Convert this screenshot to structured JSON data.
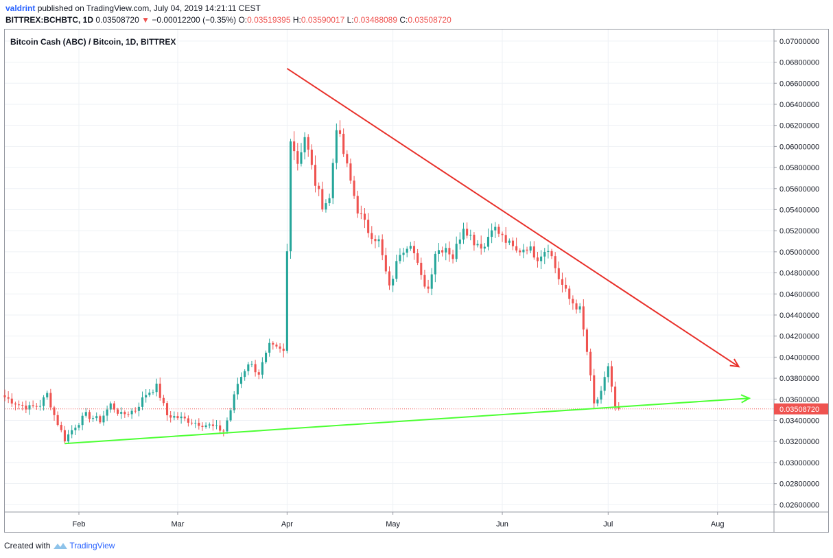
{
  "header": {
    "author": "valdrint",
    "published_text": "published on TradingView.com, July 04, 2019 14:21:11 CEST",
    "symbol": "BITTREX:BCHBTC, 1D",
    "last": "0.03508720",
    "change": "−0.00012200 (−0.35%)",
    "o_label": "O:",
    "o_value": "0.03519395",
    "h_label": "H:",
    "h_value": "0.03590017",
    "l_label": "L:",
    "l_value": "0.03488089",
    "c_label": "C:",
    "c_value": "0.03508720"
  },
  "footer": {
    "created_with": "Created with",
    "brand": "TradingView"
  },
  "colors": {
    "up": "#26a69a",
    "down": "#ef5350",
    "resistance": "#e8302a",
    "support": "#4cff33",
    "grid": "#eef1f5",
    "price_line": "#ef5350"
  },
  "chart_data": {
    "type": "candlestick",
    "title": "Bitcoin Cash (ABC) / Bitcoin, 1D, BITTREX",
    "x_ticks": [
      "Feb",
      "Mar",
      "Apr",
      "May",
      "Jun",
      "Jul",
      "Aug"
    ],
    "x_tick_dates": [
      "2019-02-01",
      "2019-03-01",
      "2019-04-01",
      "2019-05-01",
      "2019-06-01",
      "2019-07-01",
      "2019-08-01"
    ],
    "x_range": [
      "2019-01-11",
      "2019-08-17"
    ],
    "y_range": [
      0.0253,
      0.0711
    ],
    "y_ticks": [
      "0.07000000",
      "0.06800000",
      "0.06600000",
      "0.06400000",
      "0.06200000",
      "0.06000000",
      "0.05800000",
      "0.05600000",
      "0.05400000",
      "0.05200000",
      "0.05000000",
      "0.04800000",
      "0.04600000",
      "0.04400000",
      "0.04200000",
      "0.04000000",
      "0.03800000",
      "0.03600000",
      "0.03400000",
      "0.03200000",
      "0.03000000",
      "0.02800000",
      "0.02600000"
    ],
    "last_price_label": "0.03508720",
    "last_price": 0.0350872,
    "trendlines": [
      {
        "color": "red",
        "from": [
          "2019-04-01",
          0.0674
        ],
        "to": [
          "2019-08-07",
          0.0391
        ],
        "arrow": true
      },
      {
        "color": "green",
        "from": [
          "2019-01-28",
          0.0318
        ],
        "to": [
          "2019-08-10",
          0.0361
        ],
        "arrow": true
      }
    ],
    "ohlc_anchors": [
      [
        "2019-01-11",
        0.0362
      ],
      [
        "2019-01-15",
        0.0355
      ],
      [
        "2019-01-18",
        0.0352
      ],
      [
        "2019-01-21",
        0.0355
      ],
      [
        "2019-01-23",
        0.0365
      ],
      [
        "2019-01-25",
        0.0345
      ],
      [
        "2019-01-28",
        0.0322
      ],
      [
        "2019-01-31",
        0.0335
      ],
      [
        "2019-02-03",
        0.0345
      ],
      [
        "2019-02-07",
        0.034
      ],
      [
        "2019-02-10",
        0.0355
      ],
      [
        "2019-02-13",
        0.0345
      ],
      [
        "2019-02-17",
        0.035
      ],
      [
        "2019-02-20",
        0.0365
      ],
      [
        "2019-02-23",
        0.0372
      ],
      [
        "2019-02-26",
        0.0345
      ],
      [
        "2019-03-02",
        0.0342
      ],
      [
        "2019-03-06",
        0.0338
      ],
      [
        "2019-03-10",
        0.0335
      ],
      [
        "2019-03-14",
        0.033
      ],
      [
        "2019-03-16",
        0.035
      ],
      [
        "2019-03-18",
        0.0375
      ],
      [
        "2019-03-21",
        0.0395
      ],
      [
        "2019-03-24",
        0.0385
      ],
      [
        "2019-03-27",
        0.041
      ],
      [
        "2019-03-31",
        0.0405
      ],
      [
        "2019-04-01",
        0.05
      ],
      [
        "2019-04-02",
        0.061
      ],
      [
        "2019-04-04",
        0.0585
      ],
      [
        "2019-04-06",
        0.061
      ],
      [
        "2019-04-09",
        0.0565
      ],
      [
        "2019-04-11",
        0.0545
      ],
      [
        "2019-04-13",
        0.055
      ],
      [
        "2019-04-15",
        0.062
      ],
      [
        "2019-04-18",
        0.058
      ],
      [
        "2019-04-21",
        0.054
      ],
      [
        "2019-04-24",
        0.052
      ],
      [
        "2019-04-27",
        0.051
      ],
      [
        "2019-04-30",
        0.0465
      ],
      [
        "2019-05-03",
        0.05
      ],
      [
        "2019-05-06",
        0.051
      ],
      [
        "2019-05-09",
        0.0475
      ],
      [
        "2019-05-11",
        0.0465
      ],
      [
        "2019-05-13",
        0.05
      ],
      [
        "2019-05-16",
        0.0505
      ],
      [
        "2019-05-18",
        0.0495
      ],
      [
        "2019-05-21",
        0.0525
      ],
      [
        "2019-05-24",
        0.051
      ],
      [
        "2019-05-27",
        0.0505
      ],
      [
        "2019-05-29",
        0.0525
      ],
      [
        "2019-06-02",
        0.051
      ],
      [
        "2019-06-05",
        0.05
      ],
      [
        "2019-06-08",
        0.0505
      ],
      [
        "2019-06-11",
        0.0495
      ],
      [
        "2019-06-14",
        0.0505
      ],
      [
        "2019-06-17",
        0.0475
      ],
      [
        "2019-06-20",
        0.0455
      ],
      [
        "2019-06-23",
        0.0445
      ],
      [
        "2019-06-25",
        0.0405
      ],
      [
        "2019-06-27",
        0.0355
      ],
      [
        "2019-06-29",
        0.0365
      ],
      [
        "2019-07-01",
        0.0392
      ],
      [
        "2019-07-03",
        0.0352
      ],
      [
        "2019-07-04",
        0.0350872
      ]
    ]
  }
}
